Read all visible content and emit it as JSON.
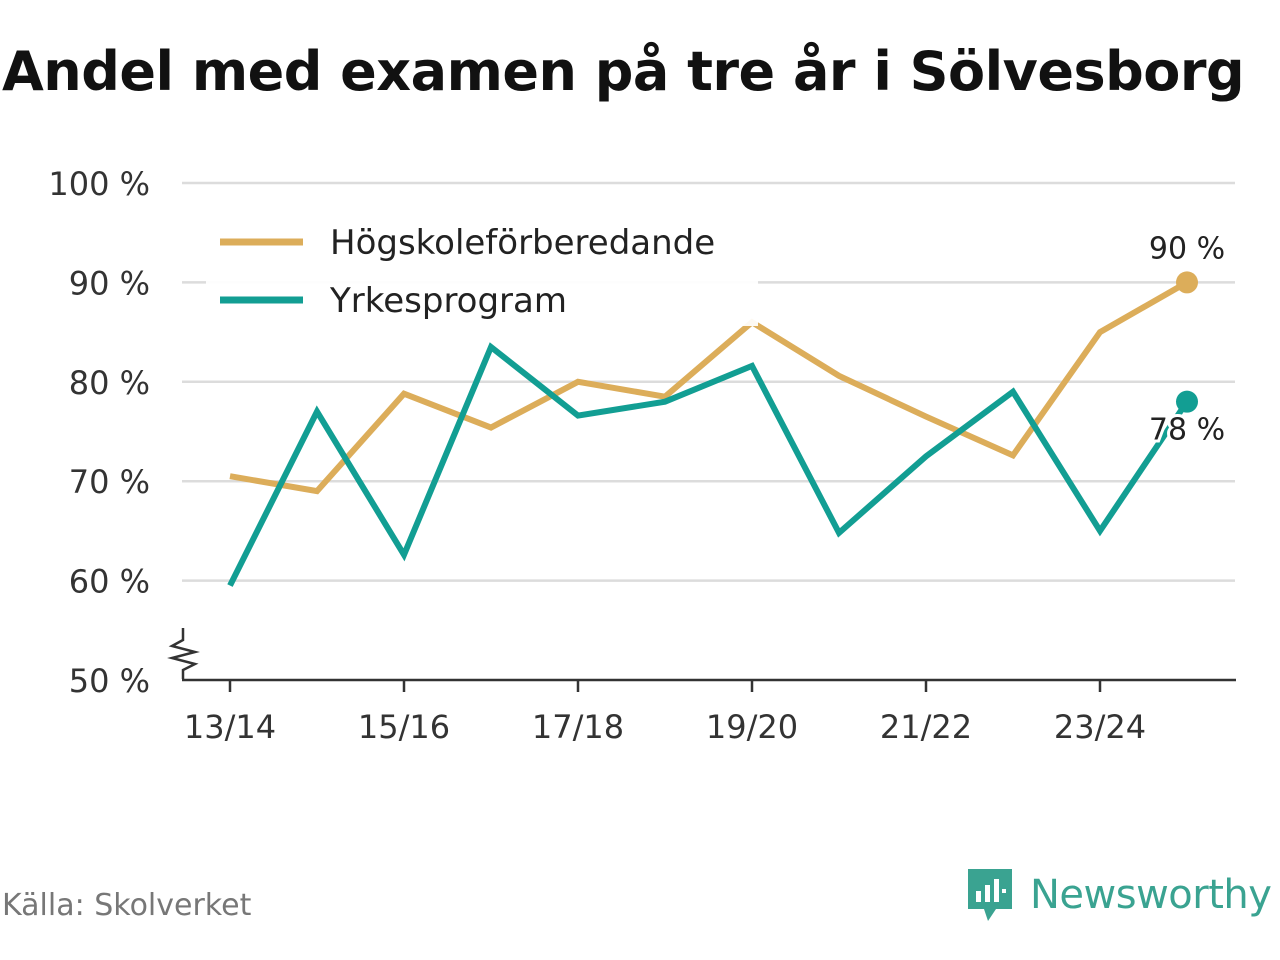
{
  "title": "Andel med examen på tre år i Sölvesborg",
  "source": "Källa: Skolverket",
  "brand": "Newsworthy",
  "chart_data": {
    "type": "line",
    "x": [
      "13/14",
      "14/15",
      "15/16",
      "16/17",
      "17/18",
      "18/19",
      "19/20",
      "20/21",
      "21/22",
      "22/23",
      "23/24",
      "24/25"
    ],
    "x_tick_labels": [
      "13/14",
      "15/16",
      "17/18",
      "19/20",
      "21/22",
      "23/24"
    ],
    "y_ticks": [
      "50 %",
      "60 %",
      "70 %",
      "80 %",
      "90 %",
      "100 %"
    ],
    "ylim": [
      50,
      100
    ],
    "grid": true,
    "legend_position": "top-left",
    "series": [
      {
        "name": "Högskoleförberedande",
        "color": "#dcad5a",
        "values": [
          70.5,
          69,
          78.8,
          75.4,
          80,
          78.5,
          86,
          80.6,
          76.5,
          72.6,
          85,
          90
        ],
        "end_label": "90 %"
      },
      {
        "name": "Yrkesprogram",
        "color": "#129e93",
        "values": [
          59.5,
          77,
          62.6,
          83.5,
          76.6,
          78,
          81.6,
          64.8,
          72.5,
          79,
          65,
          78
        ],
        "end_label": "78 %"
      }
    ]
  }
}
